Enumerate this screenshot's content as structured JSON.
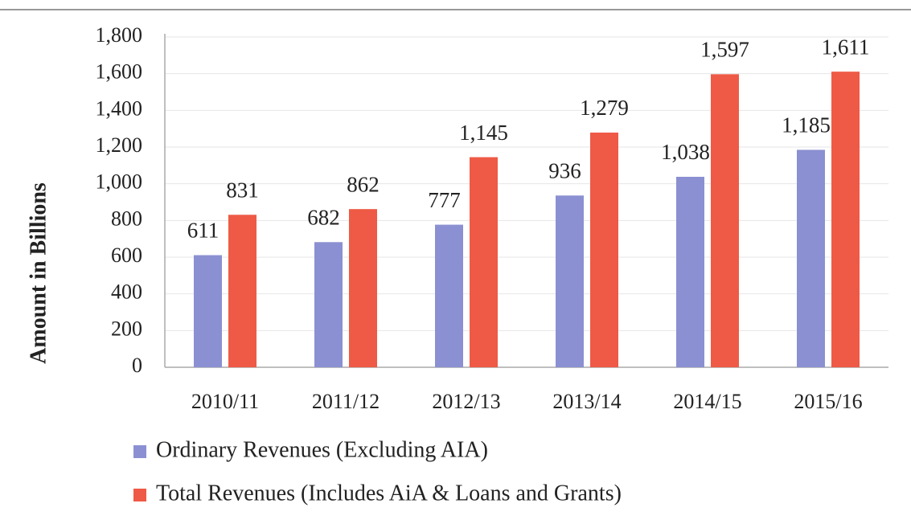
{
  "chart_data": {
    "type": "bar",
    "y_label": "Amount in Billions",
    "categories": [
      "2010/11",
      "2011/12",
      "2012/13",
      "2013/14",
      "2014/15",
      "2015/16"
    ],
    "series": [
      {
        "name": "Ordinary Revenues (Excluding AIA)",
        "color": "#8b90d2",
        "values": [
          611,
          682,
          777,
          936,
          1038,
          1185
        ],
        "value_labels": [
          "611",
          "682",
          "777",
          "936",
          "1,038",
          "1,185"
        ]
      },
      {
        "name": "Total Revenues (Includes AiA &  Loans and Grants)",
        "color": "#ee5a46",
        "values": [
          831,
          862,
          1145,
          1279,
          1597,
          1611
        ],
        "value_labels": [
          "831",
          "862",
          "1,145",
          "1,279",
          "1,597",
          "1,611"
        ]
      }
    ],
    "ylim": [
      0,
      1800
    ],
    "yticks": [
      0,
      200,
      400,
      600,
      800,
      {
        "value": 1000,
        "label": "1,000"
      },
      {
        "value": 1200,
        "label": "1,200"
      },
      {
        "value": 1400,
        "label": "1,400"
      },
      {
        "value": 1600,
        "label": "1,600"
      },
      {
        "value": 1800,
        "label": "1,800"
      }
    ],
    "grid": true,
    "legend": "bottom-left"
  }
}
